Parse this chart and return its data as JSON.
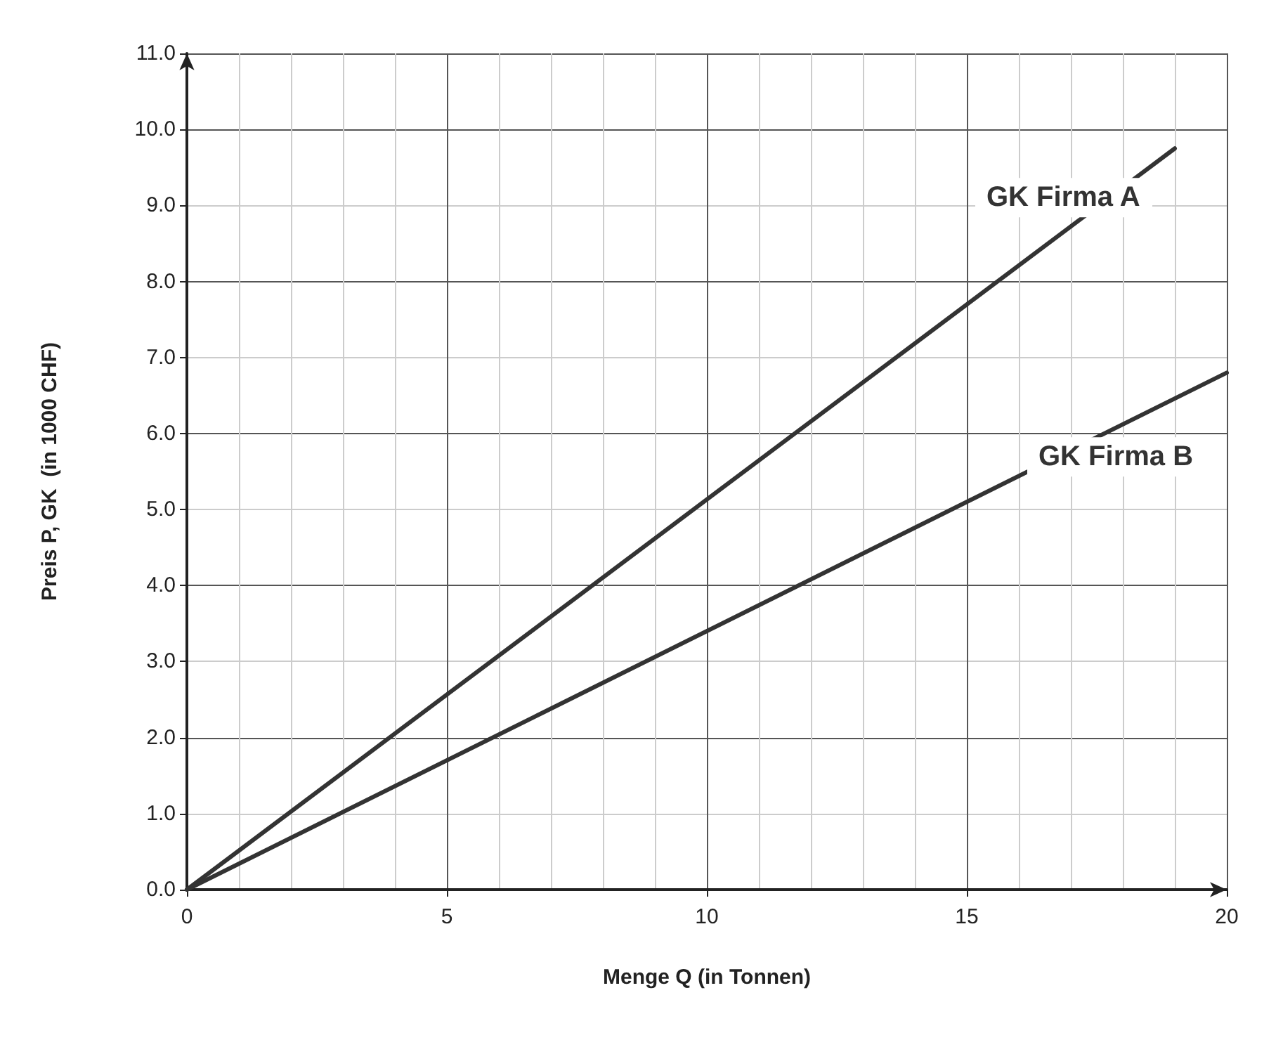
{
  "chart_data": {
    "type": "line",
    "xlabel": "Menge Q (in Tonnen)",
    "ylabel": "Preis P, GK  (in 1000 CHF)",
    "series": [
      {
        "name": "GK Firma A",
        "color": "#333333",
        "x": [
          0,
          19
        ],
        "values": [
          0,
          9.75
        ]
      },
      {
        "name": "GK Firma B",
        "color": "#333333",
        "x": [
          0,
          20
        ],
        "values": [
          0,
          6.8
        ]
      }
    ],
    "xlim": [
      0,
      20
    ],
    "xticks": [
      0,
      5,
      10,
      15,
      20
    ],
    "ylim": [
      0,
      11
    ],
    "yticks": [
      {
        "value": 0,
        "label": "0.0"
      },
      {
        "value": 1,
        "label": "1.0"
      },
      {
        "value": 2,
        "label": "2.0"
      },
      {
        "value": 3,
        "label": "3.0"
      },
      {
        "value": 4,
        "label": "4.0"
      },
      {
        "value": 5,
        "label": "5.0"
      },
      {
        "value": 6,
        "label": "6.0"
      },
      {
        "value": 7,
        "label": "7.0"
      },
      {
        "value": 8,
        "label": "8.0"
      },
      {
        "value": 9,
        "label": "9.0"
      },
      {
        "value": 10,
        "label": "10.0"
      },
      {
        "value": 11,
        "label": "11.0"
      }
    ],
    "grid": true,
    "legend": false,
    "marker": "none",
    "line_style": "solid"
  }
}
